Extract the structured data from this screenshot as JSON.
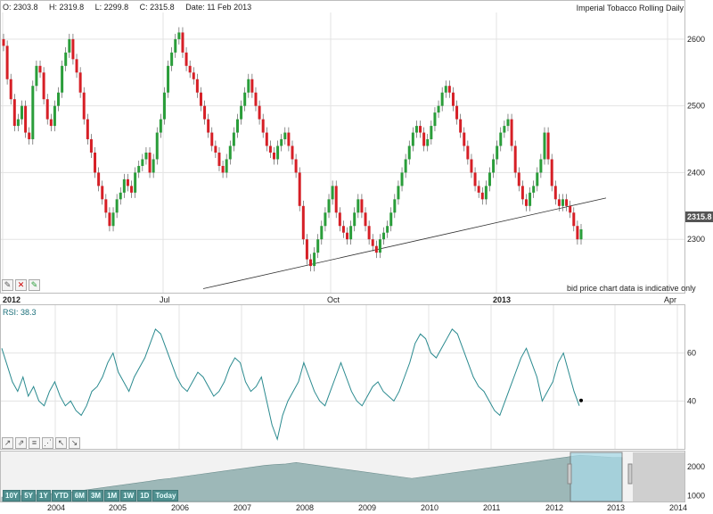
{
  "header": {
    "open_label": "O: 2303.8",
    "high_label": "H: 2319.8",
    "low_label": "L: 2299.8",
    "close_label": "C: 2315.8",
    "date_label": "Date: 11 Feb 2013",
    "title": "Imperial Tobacco Rolling Daily"
  },
  "note": "bid price chart data is indicative only",
  "rsi_label": "RSI: 38.3",
  "last_price": "2315.8",
  "main_tools": [
    "pencil-icon",
    "close-icon",
    "edit-icon"
  ],
  "rsi_tools": [
    "trend-icon",
    "channel-icon",
    "fib-icon",
    "fan-icon",
    "arrow-icon",
    "line-icon"
  ],
  "range_buttons": [
    "10Y",
    "5Y",
    "1Y",
    "YTD",
    "6M",
    "3M",
    "1M",
    "1W",
    "1D",
    "Today"
  ],
  "colors": {
    "up": "#2a9d3a",
    "down": "#d61f26",
    "rsi": "#2a8a8f",
    "nav": "#9db8b8",
    "nav_sel": "#a8d9e6"
  },
  "chart_data": [
    {
      "type": "candlestick",
      "title": "Imperial Tobacco Rolling Daily",
      "ylim": [
        2220,
        2640
      ],
      "yticks": [
        2300,
        2400,
        2500,
        2600
      ],
      "xticks": [
        "2012",
        "Jul",
        "Oct",
        "2013",
        "Apr"
      ],
      "grid": true,
      "trendline": [
        [
          2300,
          2226
        ],
        [
          2380,
          2362
        ]
      ],
      "closes": [
        2590,
        2540,
        2510,
        2470,
        2480,
        2500,
        2460,
        2450,
        2530,
        2560,
        2550,
        2510,
        2480,
        2470,
        2500,
        2520,
        2560,
        2580,
        2600,
        2570,
        2550,
        2520,
        2480,
        2450,
        2430,
        2400,
        2380,
        2360,
        2340,
        2320,
        2340,
        2360,
        2370,
        2390,
        2380,
        2370,
        2400,
        2410,
        2420,
        2430,
        2400,
        2420,
        2460,
        2480,
        2520,
        2560,
        2580,
        2600,
        2610,
        2580,
        2560,
        2550,
        2540,
        2520,
        2500,
        2480,
        2460,
        2440,
        2430,
        2410,
        2400,
        2420,
        2440,
        2460,
        2480,
        2500,
        2520,
        2540,
        2520,
        2500,
        2480,
        2460,
        2440,
        2430,
        2420,
        2440,
        2450,
        2460,
        2440,
        2420,
        2400,
        2350,
        2300,
        2270,
        2260,
        2280,
        2300,
        2320,
        2340,
        2360,
        2380,
        2340,
        2320,
        2310,
        2300,
        2320,
        2340,
        2360,
        2340,
        2320,
        2300,
        2290,
        2280,
        2300,
        2310,
        2320,
        2340,
        2360,
        2380,
        2400,
        2420,
        2440,
        2460,
        2470,
        2460,
        2440,
        2450,
        2470,
        2490,
        2500,
        2520,
        2530,
        2520,
        2500,
        2480,
        2460,
        2440,
        2420,
        2400,
        2380,
        2370,
        2360,
        2380,
        2400,
        2420,
        2440,
        2460,
        2470,
        2480,
        2440,
        2400,
        2380,
        2360,
        2350,
        2370,
        2380,
        2400,
        2420,
        2460,
        2420,
        2380,
        2360,
        2350,
        2360,
        2350,
        2340,
        2320,
        2300,
        2315
      ]
    },
    {
      "type": "line",
      "name": "RSI",
      "ylim": [
        20,
        80
      ],
      "yticks": [
        40,
        60
      ],
      "xticks": [
        "2004",
        "2005",
        "2006",
        "2007",
        "2008",
        "2009",
        "2010",
        "2011",
        "2012",
        "2013",
        "2014"
      ],
      "values": [
        62,
        55,
        48,
        44,
        50,
        42,
        46,
        40,
        38,
        44,
        48,
        42,
        38,
        40,
        36,
        34,
        38,
        44,
        46,
        50,
        56,
        60,
        52,
        48,
        44,
        50,
        54,
        58,
        64,
        70,
        68,
        62,
        56,
        50,
        46,
        44,
        48,
        52,
        50,
        46,
        42,
        44,
        48,
        54,
        58,
        56,
        48,
        44,
        46,
        50,
        40,
        30,
        24,
        34,
        40,
        44,
        48,
        56,
        50,
        44,
        40,
        38,
        44,
        50,
        56,
        50,
        44,
        40,
        38,
        42,
        46,
        48,
        44,
        42,
        40,
        44,
        50,
        56,
        64,
        68,
        66,
        60,
        58,
        62,
        66,
        70,
        68,
        62,
        56,
        50,
        46,
        44,
        40,
        36,
        34,
        40,
        46,
        52,
        58,
        62,
        56,
        50,
        40,
        44,
        48,
        56,
        60,
        52,
        44,
        38
      ]
    },
    {
      "type": "area",
      "name": "navigator",
      "ylim": [
        800,
        2500
      ],
      "yticks": [
        1000,
        2000
      ],
      "xticks": [
        "2004",
        "2005",
        "2006",
        "2007",
        "2008",
        "2009",
        "2010",
        "2011",
        "2012",
        "2013",
        "2014"
      ],
      "values": [
        950,
        980,
        1000,
        1020,
        1050,
        1080,
        1100,
        1150,
        1200,
        1250,
        1300,
        1350,
        1400,
        1450,
        1500,
        1560,
        1600,
        1650,
        1700,
        1750,
        1800,
        1850,
        1900,
        1950,
        2000,
        2050,
        2080,
        2100,
        2150,
        2100,
        2050,
        2000,
        1950,
        1900,
        1850,
        1800,
        1750,
        1700,
        1650,
        1600,
        1650,
        1700,
        1750,
        1800,
        1850,
        1900,
        1950,
        2000,
        2050,
        2100,
        2150,
        2200,
        2250,
        2300,
        2350,
        2400,
        2380,
        2350,
        2330,
        2320
      ]
    }
  ]
}
